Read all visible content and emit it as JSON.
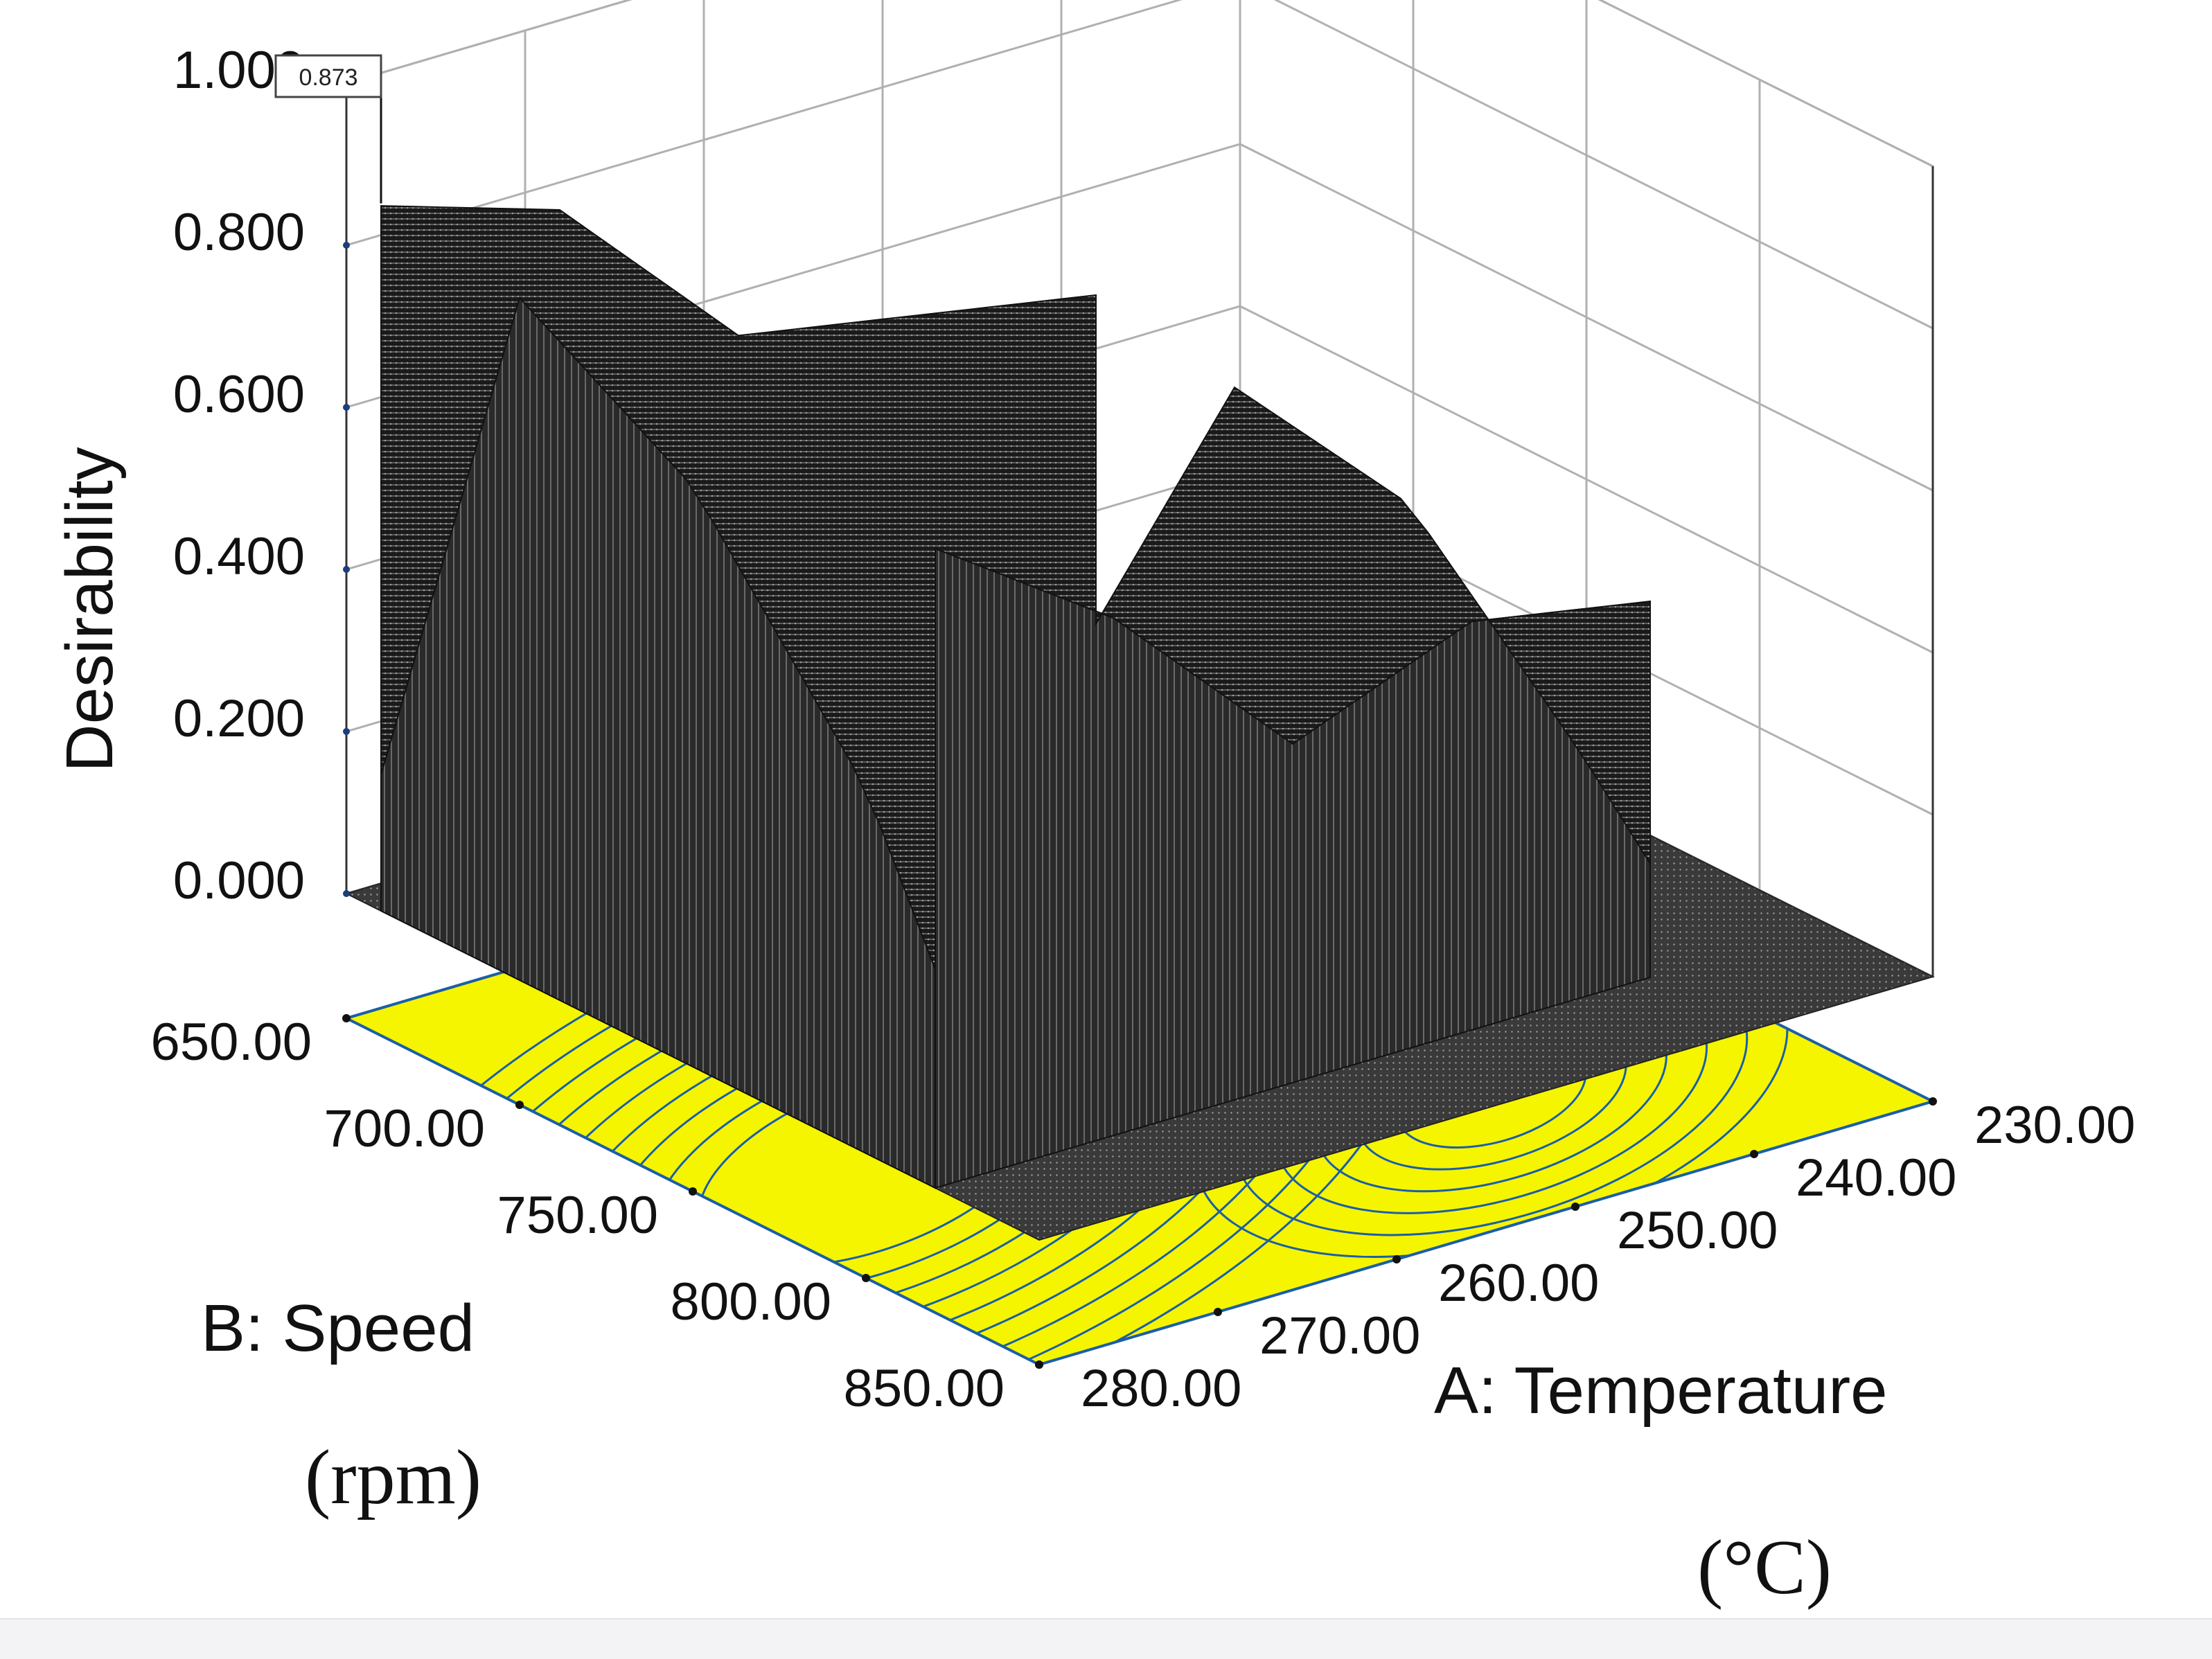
{
  "chart_data": {
    "type": "surface",
    "title": "",
    "zlabel": "Desirability",
    "x_axis": {
      "label": "A: Temperature",
      "unit": "(°C)",
      "ticks": [
        "230.00",
        "240.00",
        "250.00",
        "260.00",
        "270.00",
        "280.00"
      ],
      "range": [
        230,
        280
      ]
    },
    "y_axis": {
      "label": "B: Speed",
      "unit": "(rpm)",
      "ticks": [
        "650.00",
        "700.00",
        "750.00",
        "800.00",
        "850.00"
      ],
      "range": [
        650,
        850
      ]
    },
    "z_axis": {
      "ticks": [
        "0.000",
        "0.200",
        "0.400",
        "0.600",
        "0.800",
        "1.000"
      ],
      "range": [
        0,
        1
      ]
    },
    "annotation": {
      "text": "0.873",
      "temperature": 280,
      "speed": 660,
      "desirability": 0.873
    },
    "surface": {
      "description_values": "desirability grid, rows = speed 650→850, cols = temperature 230→280",
      "temperature": [
        230,
        240,
        250,
        260,
        270,
        280
      ],
      "speed": [
        650,
        700,
        750,
        800,
        850
      ],
      "desirability": [
        [
          0.0,
          0.0,
          0.0,
          0.0,
          0.0,
          0.0
        ],
        [
          0.0,
          0.5,
          0.54,
          0.58,
          0.8,
          0.87
        ],
        [
          0.0,
          0.46,
          0.5,
          0.4,
          0.62,
          0.78
        ],
        [
          0.0,
          0.35,
          0.2,
          0.1,
          0.3,
          0.55
        ],
        [
          0.0,
          0.0,
          0.0,
          0.0,
          0.0,
          0.0
        ]
      ]
    },
    "colors": {
      "surface": "#111111",
      "contour_floor": "#f5f500",
      "contour_lines": "#1a5fa8",
      "grid": "#b0b0b0"
    }
  }
}
